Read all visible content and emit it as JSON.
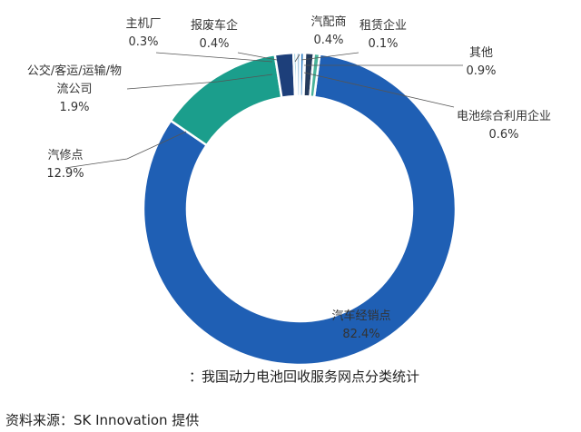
{
  "chart_data": {
    "type": "pie",
    "style": "donut",
    "title": "我国动力电池回收服务网点分类统计",
    "title_prefix": "：",
    "source": "资料来源：SK Innovation 提供",
    "grid": false,
    "legend": "none",
    "slices": [
      {
        "label": "汽车经销点",
        "value_label": "82.4%",
        "value": 82.4,
        "color": "#1f5fb4"
      },
      {
        "label": "汽修点",
        "value_label": "12.9%",
        "value": 12.9,
        "color": "#1b9e8c"
      },
      {
        "label": "公交/客运/运输/物流公司",
        "label_lines": [
          "公交/客运/运输/物",
          "流公司"
        ],
        "value_label": "1.9%",
        "value": 1.9,
        "color": "#1d3f7a"
      },
      {
        "label": "主机厂",
        "value_label": "0.3%",
        "value": 0.3,
        "color": "#5fb0c9"
      },
      {
        "label": "报废车企",
        "value_label": "0.4%",
        "value": 0.4,
        "color": "#a9c9e0"
      },
      {
        "label": "汽配商",
        "value_label": "0.4%",
        "value": 0.4,
        "color": "#2f7ec4"
      },
      {
        "label": "租赁企业",
        "value_label": "0.1%",
        "value": 0.1,
        "color": "#2d5e7a"
      },
      {
        "label": "其他",
        "value_label": "0.9%",
        "value": 0.9,
        "color": "#243a5c"
      },
      {
        "label": "电池综合利用企业",
        "value_label": "0.6%",
        "value": 0.6,
        "color": "#49b39a"
      }
    ]
  }
}
